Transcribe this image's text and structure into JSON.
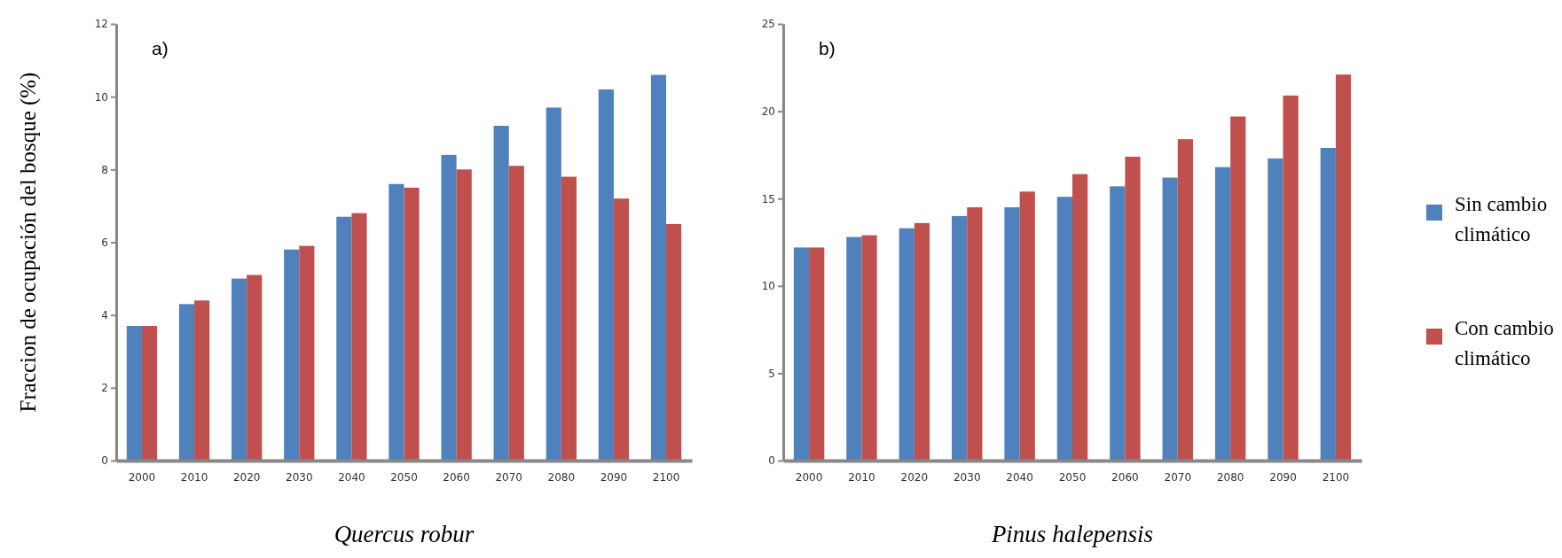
{
  "chart_data": [
    {
      "type": "bar",
      "ylabel": "Fraccion de ocupación del bosque (%)",
      "xlabel": "Quercus robur",
      "annotations": [
        "a)"
      ],
      "categories": [
        "2000",
        "2010",
        "2020",
        "2030",
        "2040",
        "2050",
        "2060",
        "2070",
        "2080",
        "2090",
        "2100"
      ],
      "ylim": [
        0,
        12
      ],
      "yticks": [
        0,
        2,
        4,
        6,
        8,
        10,
        12
      ],
      "grid": false,
      "legend": false,
      "series": [
        {
          "color": "#4f81bd",
          "values": [
            3.7,
            4.3,
            5.0,
            5.8,
            6.7,
            7.6,
            8.4,
            9.2,
            9.7,
            10.2,
            10.6
          ]
        },
        {
          "color": "#c0504d",
          "values": [
            3.7,
            4.4,
            5.1,
            5.9,
            6.8,
            7.5,
            8.0,
            8.1,
            7.8,
            7.2,
            6.5
          ]
        }
      ]
    },
    {
      "type": "bar",
      "xlabel": "Pinus halepensis",
      "annotations": [
        "b)"
      ],
      "categories": [
        "2000",
        "2010",
        "2020",
        "2030",
        "2040",
        "2050",
        "2060",
        "2070",
        "2080",
        "2090",
        "2100"
      ],
      "ylim": [
        0,
        25
      ],
      "yticks": [
        0,
        5,
        10,
        15,
        20,
        25
      ],
      "grid": false,
      "legend": "right",
      "series": [
        {
          "name": "Sin cambio climático",
          "color": "#4f81bd",
          "values": [
            12.2,
            12.8,
            13.3,
            14.0,
            14.5,
            15.1,
            15.7,
            16.2,
            16.8,
            17.3,
            17.9
          ]
        },
        {
          "name": "Con cambio climático",
          "color": "#c0504d",
          "values": [
            12.2,
            12.9,
            13.6,
            14.5,
            15.4,
            16.4,
            17.4,
            18.4,
            19.7,
            20.9,
            22.1
          ]
        }
      ]
    }
  ]
}
